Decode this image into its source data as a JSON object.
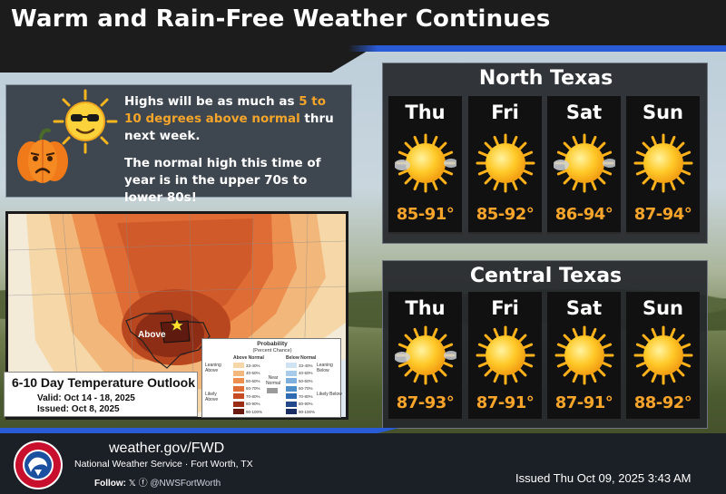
{
  "header": {
    "title": "Warm and Rain-Free Weather Continues"
  },
  "info": {
    "line1_pre": "Highs will be as much as ",
    "line1_highlight": "5 to 10 degrees above normal",
    "line1_post": " thru next week.",
    "line2": "The normal high this time of year is in the upper 70s to lower 80s!"
  },
  "map": {
    "label_above": "Above",
    "caption_title": "6-10 Day Temperature Outlook",
    "valid": "Valid: Oct 14 - 18, 2025",
    "issued": "Issued: Oct 8, 2025",
    "legend": {
      "title": "Probability",
      "subtitle": "(Percent Chance)",
      "above_header": "Above Normal",
      "below_header": "Below Normal",
      "leaning_above": "Leaning Above",
      "likely_above": "Likely Above",
      "near_normal": "Near Normal",
      "leaning_below": "Leaning Below",
      "likely_below": "Likely Below",
      "above_bins": [
        "33-40%",
        "40-50%",
        "50-60%",
        "60-70%",
        "70-80%",
        "80-90%",
        "90-100%"
      ],
      "below_bins": [
        "33-40%",
        "40-50%",
        "50-60%",
        "60-70%",
        "70-80%",
        "80-90%",
        "90-100%"
      ],
      "above_colors": [
        "#f5d7a8",
        "#f2b77a",
        "#ec8f4f",
        "#df6b35",
        "#c74b22",
        "#9c2c16",
        "#6b1a12"
      ],
      "below_colors": [
        "#cfe3f3",
        "#a8cbe9",
        "#7db0dc",
        "#4f8fc9",
        "#2f6bb0",
        "#23488c",
        "#1a2e63"
      ]
    }
  },
  "north": {
    "title": "North Texas",
    "days": [
      {
        "name": "Thu",
        "temp": "85-91°",
        "icon": "sun-haze-icon"
      },
      {
        "name": "Fri",
        "temp": "85-92°",
        "icon": "sun-icon"
      },
      {
        "name": "Sat",
        "temp": "86-94°",
        "icon": "sun-haze-icon"
      },
      {
        "name": "Sun",
        "temp": "87-94°",
        "icon": "sun-icon"
      }
    ]
  },
  "central": {
    "title": "Central Texas",
    "days": [
      {
        "name": "Thu",
        "temp": "87-93°",
        "icon": "sun-haze-icon"
      },
      {
        "name": "Fri",
        "temp": "87-91°",
        "icon": "sun-icon"
      },
      {
        "name": "Sat",
        "temp": "87-91°",
        "icon": "sun-icon"
      },
      {
        "name": "Sun",
        "temp": "88-92°",
        "icon": "sun-icon"
      }
    ]
  },
  "footer": {
    "url": "weather.gov/FWD",
    "office": "National Weather Service · Fort Worth, TX",
    "follow_label": "Follow:",
    "handle": "@NWSFortWorth",
    "issued": "Issued Thu Oct 09, 2025 3:43 AM",
    "logo_text": "NATIONAL WEATHER SERVICE"
  },
  "colors": {
    "accent_orange": "#f7a42a",
    "header_bg": "#1c1c1c",
    "stripe_blue": "#2a5bd7"
  }
}
